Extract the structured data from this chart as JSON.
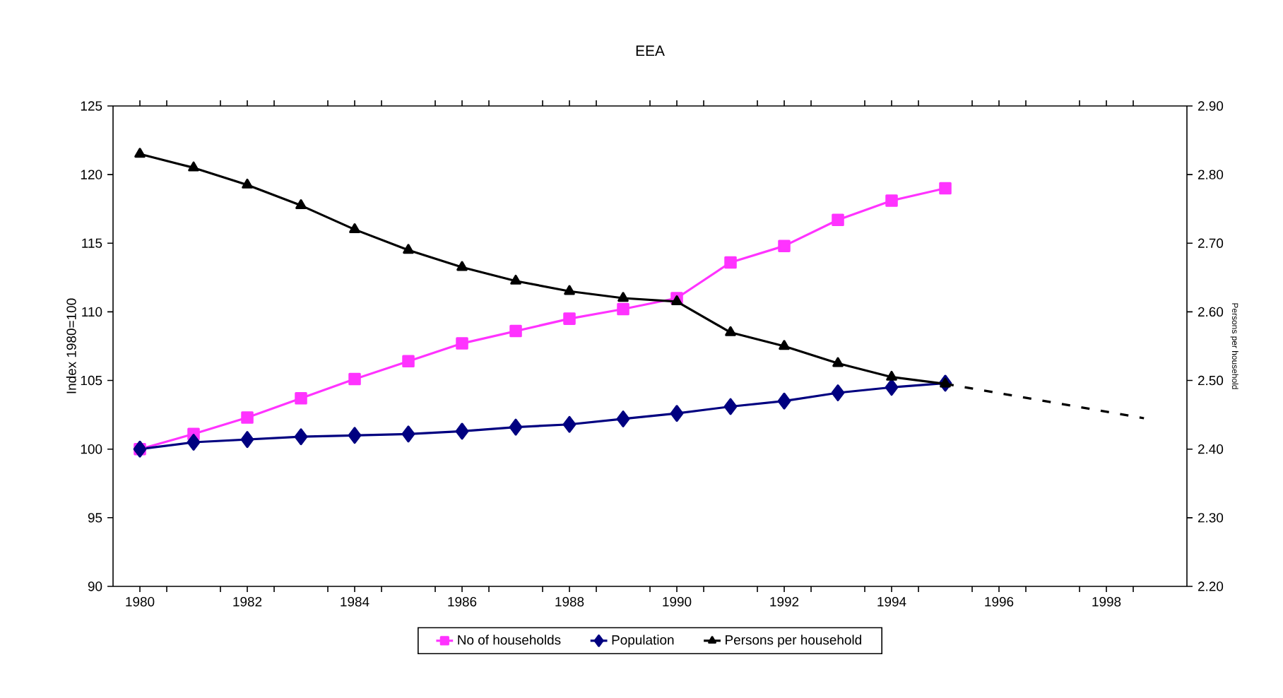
{
  "chart_data": {
    "type": "line",
    "title": "EEA",
    "ylabel": "Index 1980=100",
    "y2label": "Persons per household",
    "xlim": [
      1979.5,
      1999.5
    ],
    "xticks": [
      1980,
      {
        "value": 1980.5,
        "label": null
      },
      {
        "value": 1981.5,
        "label": null
      },
      1982,
      {
        "value": 1982.5,
        "label": null
      },
      {
        "value": 1983.5,
        "label": null
      },
      1984,
      {
        "value": 1984.5,
        "label": null
      },
      {
        "value": 1985.5,
        "label": null
      },
      1986,
      {
        "value": 1986.5,
        "label": null
      },
      {
        "value": 1987.5,
        "label": null
      },
      1988,
      {
        "value": 1988.5,
        "label": null
      },
      {
        "value": 1989.5,
        "label": null
      },
      1990,
      {
        "value": 1990.5,
        "label": null
      },
      {
        "value": 1991.5,
        "label": null
      },
      1992,
      {
        "value": 1992.5,
        "label": null
      },
      {
        "value": 1993.5,
        "label": null
      },
      1994,
      {
        "value": 1994.5,
        "label": null
      },
      {
        "value": 1995.5,
        "label": null
      },
      1996,
      {
        "value": 1996.5,
        "label": null
      },
      {
        "value": 1997.5,
        "label": null
      },
      1998,
      {
        "value": 1998.5,
        "label": null
      }
    ],
    "ylim": [
      90,
      125
    ],
    "yticks": [
      90,
      95,
      100,
      105,
      110,
      115,
      120,
      125
    ],
    "y2lim": [
      2.2,
      2.9
    ],
    "y2ticks": [
      {
        "value": 2.2,
        "label": "2.20"
      },
      {
        "value": 2.3,
        "label": "2.30"
      },
      {
        "value": 2.4,
        "label": "2.40"
      },
      {
        "value": 2.5,
        "label": "2.50"
      },
      {
        "value": 2.6,
        "label": "2.60"
      },
      {
        "value": 2.7,
        "label": "2.70"
      },
      {
        "value": 2.8,
        "label": "2.80"
      },
      {
        "value": 2.9,
        "label": "2.90"
      }
    ],
    "grid": false,
    "legend": "bottom",
    "line_style": "solid",
    "x": [
      1980,
      1981,
      1982,
      1983,
      1984,
      1985,
      1986,
      1987,
      1988,
      1989,
      1990,
      1991,
      1992,
      1993,
      1994,
      1995
    ],
    "series": [
      {
        "name": "No of households",
        "color": "#ff33ff",
        "marker": "square",
        "values": [
          100,
          101.1,
          102.3,
          103.7,
          105.1,
          106.4,
          107.7,
          108.6,
          109.5,
          110.2,
          111.0,
          113.6,
          114.8,
          116.7,
          118.1,
          119.0
        ]
      },
      {
        "name": "Population",
        "color": "#000080",
        "marker": "diamond",
        "values": [
          100,
          100.5,
          100.7,
          100.9,
          101.0,
          101.1,
          101.3,
          101.6,
          101.8,
          102.2,
          102.6,
          103.1,
          103.5,
          104.1,
          104.5,
          104.8
        ]
      },
      {
        "name": "Persons per household",
        "color": "#000000",
        "marker": "triangle",
        "axis": "y2",
        "values": [
          2.83,
          2.81,
          2.785,
          2.755,
          2.72,
          2.69,
          2.665,
          2.645,
          2.63,
          2.62,
          2.615,
          2.57,
          2.55,
          2.525,
          2.505,
          2.495
        ]
      },
      {
        "color": "#000000",
        "marker": "none",
        "line_style": "dashed",
        "axis": "y2",
        "x": [
          1995,
          1998.7
        ],
        "values": [
          2.495,
          2.445
        ]
      }
    ]
  }
}
